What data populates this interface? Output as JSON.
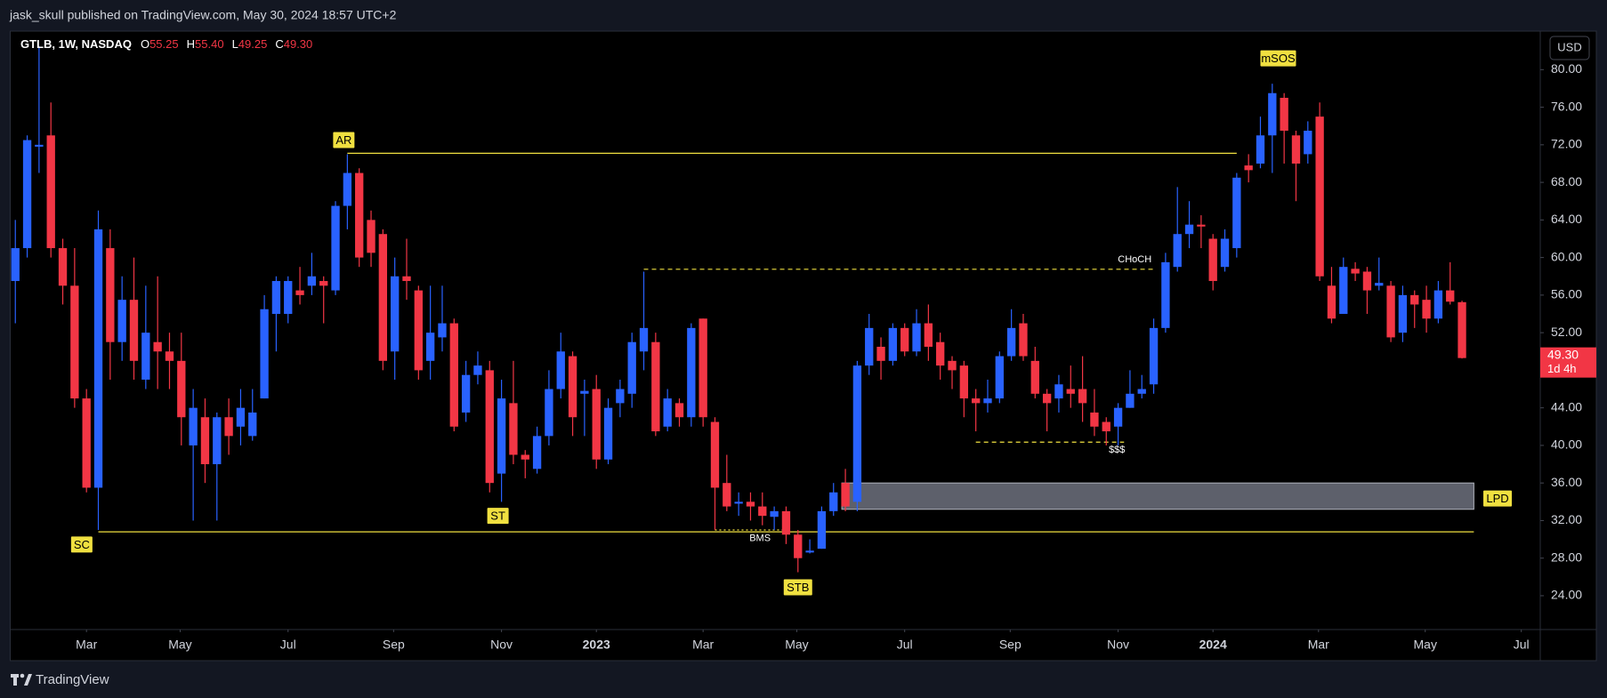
{
  "header": {
    "published": "jask_skull published on TradingView.com, May 30, 2024 18:57 UTC+2"
  },
  "chart_data": {
    "type": "candlestick",
    "symbol": "GTLB, 1W, NASDAQ",
    "readout": [
      {
        "name": "O",
        "value": 55.25
      },
      {
        "name": "H",
        "value": 55.4,
        "label": "55.40"
      },
      {
        "name": "L",
        "value": 49.25
      },
      {
        "name": "C",
        "value": 49.3,
        "label": "49.30"
      }
    ],
    "countdown": "1d 4h",
    "currency": "USD",
    "up_color": "#2962ff",
    "down_color": "#f23645",
    "xlim": [
      -0.43,
      128.6
    ],
    "ylim": [
      20.4,
      84.1
    ],
    "yticks": [
      {
        "value": 24,
        "label": "24.00"
      },
      {
        "value": 28,
        "label": "28.00"
      },
      {
        "value": 32,
        "label": "32.00"
      },
      {
        "value": 36,
        "label": "36.00"
      },
      {
        "value": 40,
        "label": "40.00"
      },
      {
        "value": 44,
        "label": "44.00"
      },
      {
        "value": 48,
        "label": "48.00"
      },
      {
        "value": 52,
        "label": "52.00"
      },
      {
        "value": 56,
        "label": "56.00"
      },
      {
        "value": 60,
        "label": "60.00"
      },
      {
        "value": 64,
        "label": "64.00"
      },
      {
        "value": 68,
        "label": "68.00"
      },
      {
        "value": 72,
        "label": "72.00"
      },
      {
        "value": 76,
        "label": "76.00"
      },
      {
        "value": 80,
        "label": "80.00"
      }
    ],
    "xticks": [
      {
        "value": 6,
        "label": "Mar"
      },
      {
        "value": 13.9,
        "label": "May"
      },
      {
        "value": 23,
        "label": "Jul"
      },
      {
        "value": 31.9,
        "label": "Sep"
      },
      {
        "value": 41,
        "label": "Nov"
      },
      {
        "value": 49,
        "label": "2023"
      },
      {
        "value": 58,
        "label": "Mar"
      },
      {
        "value": 65.9,
        "label": "May"
      },
      {
        "value": 75,
        "label": "Jul"
      },
      {
        "value": 83.9,
        "label": "Sep"
      },
      {
        "value": 93,
        "label": "Nov"
      },
      {
        "value": 101,
        "label": "2024"
      },
      {
        "value": 109.9,
        "label": "Mar"
      },
      {
        "value": 118.9,
        "label": "May"
      },
      {
        "value": 127,
        "label": "Jul"
      }
    ],
    "grid": false,
    "candles": [
      {
        "o": 57.5,
        "h": 64,
        "l": 53,
        "c": 61
      },
      {
        "o": 61,
        "h": 73,
        "l": 60,
        "c": 72.5
      },
      {
        "o": 71.8,
        "h": 82.5,
        "l": 69,
        "c": 72
      },
      {
        "o": 73,
        "h": 76.5,
        "l": 60,
        "c": 61
      },
      {
        "o": 61,
        "h": 62,
        "l": 55,
        "c": 57
      },
      {
        "o": 57,
        "h": 61,
        "l": 44,
        "c": 45
      },
      {
        "o": 45,
        "h": 46,
        "l": 35,
        "c": 35.5
      },
      {
        "o": 35.5,
        "h": 65,
        "l": 31,
        "c": 63
      },
      {
        "o": 61,
        "h": 63,
        "l": 47,
        "c": 51
      },
      {
        "o": 51,
        "h": 58,
        "l": 49,
        "c": 55.5
      },
      {
        "o": 55.5,
        "h": 60,
        "l": 47,
        "c": 49
      },
      {
        "o": 47,
        "h": 57,
        "l": 46,
        "c": 52
      },
      {
        "o": 51,
        "h": 58,
        "l": 46,
        "c": 50
      },
      {
        "o": 50,
        "h": 52,
        "l": 46,
        "c": 49
      },
      {
        "o": 49,
        "h": 52,
        "l": 40,
        "c": 43
      },
      {
        "o": 40,
        "h": 46,
        "l": 32,
        "c": 44
      },
      {
        "o": 43,
        "h": 45,
        "l": 36,
        "c": 38
      },
      {
        "o": 38,
        "h": 43.5,
        "l": 32,
        "c": 43
      },
      {
        "o": 43,
        "h": 45,
        "l": 39,
        "c": 41
      },
      {
        "o": 42,
        "h": 46,
        "l": 40,
        "c": 44
      },
      {
        "o": 41,
        "h": 46,
        "l": 40.5,
        "c": 43.5
      },
      {
        "o": 45,
        "h": 56,
        "l": 45,
        "c": 54.5
      },
      {
        "o": 54,
        "h": 58,
        "l": 50,
        "c": 57.5
      },
      {
        "o": 54,
        "h": 58,
        "l": 53,
        "c": 57.5
      },
      {
        "o": 56.5,
        "h": 59,
        "l": 55,
        "c": 56
      },
      {
        "o": 57,
        "h": 60.5,
        "l": 56,
        "c": 58
      },
      {
        "o": 57.5,
        "h": 58,
        "l": 53,
        "c": 57
      },
      {
        "o": 56.5,
        "h": 66,
        "l": 56,
        "c": 65.5
      },
      {
        "o": 65.5,
        "h": 71,
        "l": 63,
        "c": 69
      },
      {
        "o": 69,
        "h": 69.5,
        "l": 59,
        "c": 60
      },
      {
        "o": 64,
        "h": 65,
        "l": 59,
        "c": 60.5
      },
      {
        "o": 62.5,
        "h": 63,
        "l": 48,
        "c": 49
      },
      {
        "o": 50,
        "h": 60,
        "l": 47,
        "c": 58
      },
      {
        "o": 58,
        "h": 62,
        "l": 55.5,
        "c": 57.5
      },
      {
        "o": 56.5,
        "h": 57,
        "l": 47,
        "c": 48
      },
      {
        "o": 49,
        "h": 57,
        "l": 47,
        "c": 52
      },
      {
        "o": 51.5,
        "h": 57,
        "l": 50,
        "c": 53
      },
      {
        "o": 53,
        "h": 53.5,
        "l": 41.5,
        "c": 42
      },
      {
        "o": 43.5,
        "h": 49,
        "l": 42.5,
        "c": 47.5
      },
      {
        "o": 47.5,
        "h": 50,
        "l": 46.5,
        "c": 48.5
      },
      {
        "o": 48,
        "h": 49,
        "l": 35,
        "c": 36
      },
      {
        "o": 37,
        "h": 47,
        "l": 34,
        "c": 45
      },
      {
        "o": 44.5,
        "h": 49,
        "l": 38,
        "c": 39
      },
      {
        "o": 39,
        "h": 39.5,
        "l": 36.5,
        "c": 38.5
      },
      {
        "o": 37.5,
        "h": 42,
        "l": 37,
        "c": 41
      },
      {
        "o": 41,
        "h": 48,
        "l": 40,
        "c": 46
      },
      {
        "o": 46,
        "h": 52,
        "l": 45,
        "c": 50
      },
      {
        "o": 49.5,
        "h": 50,
        "l": 41,
        "c": 43
      },
      {
        "o": 45.5,
        "h": 47,
        "l": 41,
        "c": 45.8
      },
      {
        "o": 46,
        "h": 47.5,
        "l": 37.5,
        "c": 38.5
      },
      {
        "o": 38.5,
        "h": 45,
        "l": 38,
        "c": 44
      },
      {
        "o": 44.5,
        "h": 47,
        "l": 43,
        "c": 46
      },
      {
        "o": 45.5,
        "h": 52,
        "l": 44,
        "c": 51
      },
      {
        "o": 50,
        "h": 58.5,
        "l": 48,
        "c": 52.5
      },
      {
        "o": 51,
        "h": 52,
        "l": 41,
        "c": 41.5
      },
      {
        "o": 42,
        "h": 46,
        "l": 41.5,
        "c": 45
      },
      {
        "o": 44.5,
        "h": 45,
        "l": 42,
        "c": 43
      },
      {
        "o": 43,
        "h": 53,
        "l": 42,
        "c": 52.5
      },
      {
        "o": 53.5,
        "h": 53.5,
        "l": 42,
        "c": 43
      },
      {
        "o": 42.5,
        "h": 43,
        "l": 31,
        "c": 35.5
      },
      {
        "o": 36,
        "h": 39,
        "l": 33,
        "c": 33.5
      },
      {
        "o": 33.8,
        "h": 35,
        "l": 32.5,
        "c": 34
      },
      {
        "o": 34,
        "h": 35,
        "l": 32,
        "c": 33.5
      },
      {
        "o": 33.5,
        "h": 35,
        "l": 31.5,
        "c": 32.5
      },
      {
        "o": 32.4,
        "h": 33.5,
        "l": 31,
        "c": 33
      },
      {
        "o": 33,
        "h": 33.5,
        "l": 29.5,
        "c": 30.5
      },
      {
        "o": 30.5,
        "h": 31,
        "l": 26.5,
        "c": 28
      },
      {
        "o": 28.6,
        "h": 30,
        "l": 28.5,
        "c": 28.8
      },
      {
        "o": 29,
        "h": 33.5,
        "l": 29,
        "c": 33
      },
      {
        "o": 33,
        "h": 36,
        "l": 32.5,
        "c": 35
      },
      {
        "o": 36,
        "h": 37.5,
        "l": 33,
        "c": 33.5
      },
      {
        "o": 34,
        "h": 49,
        "l": 33,
        "c": 48.5
      },
      {
        "o": 48.5,
        "h": 54,
        "l": 47.5,
        "c": 52.5
      },
      {
        "o": 50.5,
        "h": 51.5,
        "l": 47,
        "c": 49
      },
      {
        "o": 49,
        "h": 53,
        "l": 48.5,
        "c": 52.5
      },
      {
        "o": 52.5,
        "h": 53,
        "l": 49.5,
        "c": 50
      },
      {
        "o": 50,
        "h": 54.5,
        "l": 49.5,
        "c": 53
      },
      {
        "o": 53,
        "h": 55,
        "l": 49,
        "c": 50.5
      },
      {
        "o": 51,
        "h": 52,
        "l": 47,
        "c": 48.5
      },
      {
        "o": 49,
        "h": 49.5,
        "l": 46,
        "c": 48
      },
      {
        "o": 48.5,
        "h": 49,
        "l": 43,
        "c": 45
      },
      {
        "o": 45,
        "h": 46,
        "l": 41.5,
        "c": 44.5
      },
      {
        "o": 44.5,
        "h": 47,
        "l": 43.5,
        "c": 45
      },
      {
        "o": 45,
        "h": 50,
        "l": 44.5,
        "c": 49.5
      },
      {
        "o": 49.5,
        "h": 54.5,
        "l": 49,
        "c": 52.5
      },
      {
        "o": 53,
        "h": 54,
        "l": 49,
        "c": 49.5
      },
      {
        "o": 49,
        "h": 50.5,
        "l": 45,
        "c": 45.5
      },
      {
        "o": 45.5,
        "h": 46,
        "l": 41.5,
        "c": 44.5
      },
      {
        "o": 45,
        "h": 47.5,
        "l": 43.5,
        "c": 46.5
      },
      {
        "o": 46,
        "h": 48.5,
        "l": 44,
        "c": 45.5
      },
      {
        "o": 46,
        "h": 49.5,
        "l": 42.5,
        "c": 44.5
      },
      {
        "o": 43.5,
        "h": 46,
        "l": 41,
        "c": 42
      },
      {
        "o": 42.5,
        "h": 43,
        "l": 40,
        "c": 41.5
      },
      {
        "o": 42,
        "h": 44.5,
        "l": 40,
        "c": 44
      },
      {
        "o": 44,
        "h": 48,
        "l": 44,
        "c": 45.5
      },
      {
        "o": 45.5,
        "h": 47.5,
        "l": 45,
        "c": 46
      },
      {
        "o": 46.5,
        "h": 53.5,
        "l": 45.5,
        "c": 52.5
      },
      {
        "o": 52.5,
        "h": 60.5,
        "l": 52,
        "c": 59.5
      },
      {
        "o": 59,
        "h": 67.5,
        "l": 58.5,
        "c": 62.5
      },
      {
        "o": 62.5,
        "h": 66,
        "l": 61,
        "c": 63.5
      },
      {
        "o": 63.5,
        "h": 64.5,
        "l": 61,
        "c": 63.3
      },
      {
        "o": 62,
        "h": 62.5,
        "l": 56.5,
        "c": 57.5
      },
      {
        "o": 59,
        "h": 63,
        "l": 58.5,
        "c": 62
      },
      {
        "o": 61,
        "h": 69,
        "l": 60,
        "c": 68.5
      },
      {
        "o": 69.8,
        "h": 71,
        "l": 68,
        "c": 69.3
      },
      {
        "o": 70,
        "h": 75,
        "l": 69.5,
        "c": 73
      },
      {
        "o": 73,
        "h": 78.5,
        "l": 69,
        "c": 77.5
      },
      {
        "o": 77,
        "h": 77.5,
        "l": 70,
        "c": 73.5
      },
      {
        "o": 73,
        "h": 73.5,
        "l": 66,
        "c": 70
      },
      {
        "o": 71,
        "h": 74.5,
        "l": 70,
        "c": 73.5
      },
      {
        "o": 75,
        "h": 76.5,
        "l": 57.5,
        "c": 58
      },
      {
        "o": 57,
        "h": 59,
        "l": 53,
        "c": 53.5
      },
      {
        "o": 54,
        "h": 60,
        "l": 54,
        "c": 59
      },
      {
        "o": 58.8,
        "h": 59.5,
        "l": 57.5,
        "c": 58.3
      },
      {
        "o": 58.5,
        "h": 59,
        "l": 54,
        "c": 56.5
      },
      {
        "o": 57,
        "h": 60,
        "l": 56.5,
        "c": 57.3
      },
      {
        "o": 57,
        "h": 57.5,
        "l": 51,
        "c": 51.5
      },
      {
        "o": 52,
        "h": 57,
        "l": 51,
        "c": 56
      },
      {
        "o": 56,
        "h": 56.5,
        "l": 52.5,
        "c": 55
      },
      {
        "o": 55.5,
        "h": 57,
        "l": 52,
        "c": 53.5
      },
      {
        "o": 53.5,
        "h": 57.5,
        "l": 53,
        "c": 56.5
      },
      {
        "o": 56.5,
        "h": 59.5,
        "l": 55,
        "c": 55.3
      },
      {
        "o": 55.25,
        "h": 55.4,
        "l": 49.25,
        "c": 49.3
      }
    ],
    "annotation_color": "#f0e040",
    "levels": [
      {
        "value": 71.1,
        "from": 28,
        "to": 103,
        "style": "solid"
      },
      {
        "value": 30.8,
        "from": 7,
        "to": 123,
        "style": "solid"
      },
      {
        "value": 58.75,
        "from": 53,
        "to": 96,
        "style": "dashed"
      },
      {
        "value": 40.35,
        "from": 81,
        "to": 93.5,
        "style": "dashed"
      },
      {
        "value": 31,
        "from": 59,
        "to": 65,
        "style": "dotted"
      }
    ],
    "zone": {
      "top": 36,
      "bottom": 33.2,
      "from": 69.7,
      "to": 123
    },
    "labels": [
      {
        "text": "AR",
        "x": 27.7,
        "y": 72.5,
        "boxed": true
      },
      {
        "text": "SC",
        "x": 5.6,
        "y": 29.45,
        "boxed": true
      },
      {
        "text": "ST",
        "x": 40.7,
        "y": 32.5,
        "boxed": true
      },
      {
        "text": "STB",
        "x": 66,
        "y": 24.9,
        "boxed": true
      },
      {
        "text": "mSOS",
        "x": 106.5,
        "y": 81.2,
        "boxed": true
      },
      {
        "text": "LPD",
        "x": 125,
        "y": 34.35,
        "boxed": true
      },
      {
        "text": "CHoCH",
        "x": 94.4,
        "y": 59.75,
        "boxed": false
      },
      {
        "text": "$$$",
        "x": 92.9,
        "y": 39.5,
        "boxed": false
      },
      {
        "text": "BMS",
        "x": 62.8,
        "y": 30.1,
        "boxed": false
      }
    ]
  },
  "footer": {
    "brand": "TradingView"
  }
}
